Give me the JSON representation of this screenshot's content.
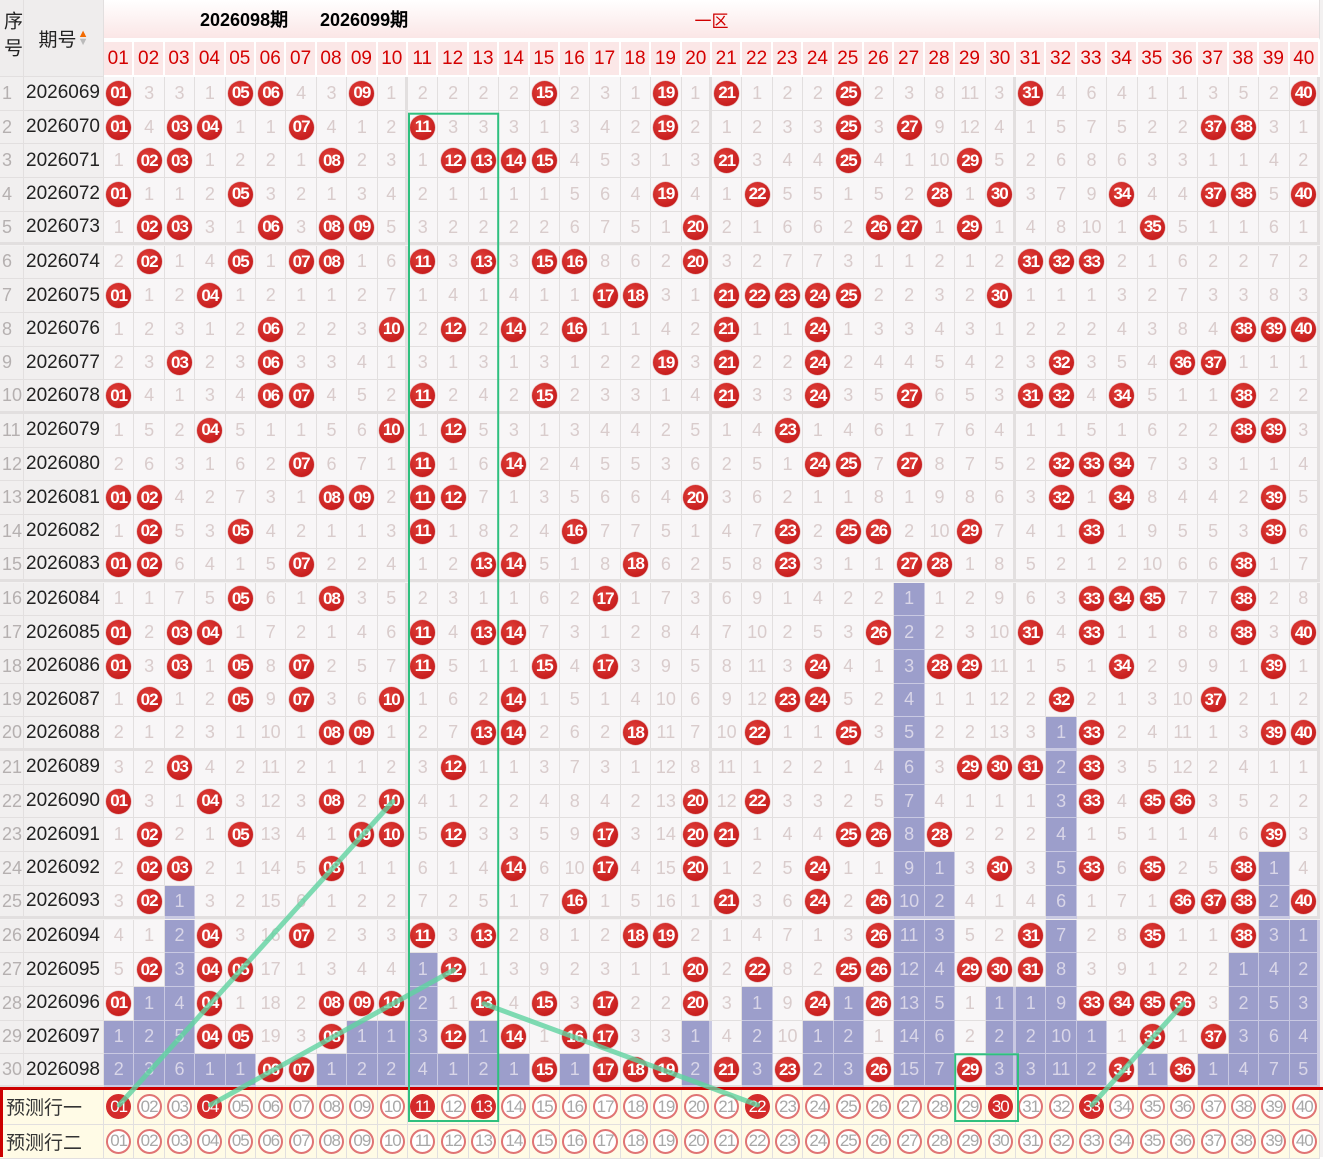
{
  "header": {
    "seq": "序号",
    "issue": "期号",
    "zone": "一区",
    "sort_icon": "sort-arrows-icon",
    "numbers": [
      "01",
      "02",
      "03",
      "04",
      "05",
      "06",
      "07",
      "08",
      "09",
      "10",
      "11",
      "12",
      "13",
      "14",
      "15",
      "16",
      "17",
      "18",
      "19",
      "20",
      "21",
      "22",
      "23",
      "24",
      "25",
      "26",
      "27",
      "28",
      "29",
      "30",
      "31",
      "32",
      "33",
      "34",
      "35",
      "36",
      "37",
      "38",
      "39",
      "40"
    ]
  },
  "rows": [
    {
      "seq": "1",
      "issue": "2026069",
      "cells": [
        "01",
        3,
        3,
        1,
        "05",
        "06",
        4,
        3,
        "09",
        1,
        2,
        2,
        2,
        2,
        "15",
        2,
        3,
        1,
        "19",
        1,
        "21",
        1,
        2,
        2,
        "25",
        2,
        3,
        8,
        11,
        3,
        "31",
        4,
        6,
        4,
        1,
        1,
        3,
        5,
        2,
        "40"
      ]
    },
    {
      "seq": "2",
      "issue": "2026070",
      "cells": [
        "01",
        4,
        "03",
        "04",
        1,
        1,
        "07",
        4,
        1,
        2,
        "11",
        3,
        3,
        3,
        1,
        3,
        4,
        2,
        "19",
        2,
        1,
        2,
        3,
        3,
        "25",
        3,
        "27",
        9,
        12,
        4,
        1,
        5,
        7,
        5,
        2,
        2,
        "37",
        "38",
        3,
        1
      ]
    },
    {
      "seq": "3",
      "issue": "2026071",
      "cells": [
        1,
        "02",
        "03",
        1,
        2,
        2,
        1,
        "08",
        2,
        3,
        1,
        "12",
        "13",
        "14",
        "15",
        4,
        5,
        3,
        1,
        3,
        "21",
        3,
        4,
        4,
        "25",
        4,
        1,
        10,
        "29",
        5,
        2,
        6,
        8,
        6,
        3,
        3,
        1,
        1,
        4,
        2
      ]
    },
    {
      "seq": "4",
      "issue": "2026072",
      "cells": [
        "01",
        1,
        1,
        2,
        "05",
        3,
        2,
        1,
        3,
        4,
        2,
        1,
        1,
        1,
        1,
        5,
        6,
        4,
        "19",
        4,
        1,
        "22",
        5,
        5,
        1,
        5,
        2,
        "28",
        1,
        "30",
        3,
        7,
        9,
        "34",
        4,
        4,
        "37",
        "38",
        5,
        "40"
      ]
    },
    {
      "seq": "5",
      "issue": "2026073",
      "cells": [
        1,
        "02",
        "03",
        3,
        1,
        "06",
        3,
        "08",
        "09",
        5,
        3,
        2,
        2,
        2,
        2,
        6,
        7,
        5,
        1,
        "20",
        2,
        1,
        6,
        6,
        2,
        "26",
        "27",
        1,
        "29",
        1,
        4,
        8,
        10,
        1,
        "35",
        5,
        1,
        1,
        6,
        1
      ]
    },
    {
      "seq": "6",
      "issue": "2026074",
      "cells": [
        2,
        "02",
        1,
        4,
        "05",
        1,
        "07",
        "08",
        1,
        6,
        "11",
        3,
        "13",
        3,
        "15",
        "16",
        8,
        6,
        2,
        "20",
        3,
        2,
        7,
        7,
        3,
        1,
        1,
        2,
        1,
        2,
        "31",
        "32",
        "33",
        2,
        1,
        6,
        2,
        2,
        7,
        2
      ]
    },
    {
      "seq": "7",
      "issue": "2026075",
      "cells": [
        "01",
        1,
        2,
        "04",
        1,
        2,
        1,
        1,
        2,
        7,
        1,
        4,
        1,
        4,
        1,
        1,
        "17",
        "18",
        3,
        1,
        "21",
        "22",
        "23",
        "24",
        "25",
        2,
        2,
        3,
        2,
        "30",
        1,
        1,
        1,
        3,
        2,
        7,
        3,
        3,
        8,
        3
      ]
    },
    {
      "seq": "8",
      "issue": "2026076",
      "cells": [
        1,
        2,
        3,
        1,
        2,
        "06",
        2,
        2,
        3,
        "10",
        2,
        "12",
        2,
        "14",
        2,
        "16",
        1,
        1,
        4,
        2,
        "21",
        1,
        1,
        "24",
        1,
        3,
        3,
        4,
        3,
        1,
        2,
        2,
        2,
        4,
        3,
        8,
        4,
        "38",
        "39",
        "40"
      ]
    },
    {
      "seq": "9",
      "issue": "2026077",
      "cells": [
        2,
        3,
        "03",
        2,
        3,
        "06",
        3,
        3,
        4,
        1,
        3,
        1,
        3,
        1,
        3,
        1,
        2,
        2,
        "19",
        3,
        "21",
        2,
        2,
        "24",
        2,
        4,
        4,
        5,
        4,
        2,
        3,
        "32",
        3,
        5,
        4,
        "36",
        "37",
        1,
        1,
        1
      ]
    },
    {
      "seq": "10",
      "issue": "2026078",
      "cells": [
        "01",
        4,
        1,
        3,
        4,
        "06",
        "07",
        4,
        5,
        2,
        "11",
        2,
        4,
        2,
        "15",
        2,
        3,
        3,
        1,
        4,
        "21",
        3,
        3,
        "24",
        3,
        5,
        "27",
        6,
        5,
        3,
        "31",
        "32",
        4,
        "34",
        5,
        1,
        1,
        "38",
        2,
        2
      ]
    },
    {
      "seq": "11",
      "issue": "2026079",
      "cells": [
        1,
        5,
        2,
        "04",
        5,
        1,
        1,
        5,
        6,
        "10",
        1,
        "12",
        5,
        3,
        1,
        3,
        4,
        4,
        2,
        5,
        1,
        4,
        "23",
        1,
        4,
        6,
        1,
        7,
        6,
        4,
        1,
        1,
        5,
        1,
        6,
        2,
        2,
        "38",
        "39",
        3
      ]
    },
    {
      "seq": "12",
      "issue": "2026080",
      "cells": [
        2,
        6,
        3,
        1,
        6,
        2,
        "07",
        6,
        7,
        1,
        "11",
        1,
        6,
        "14",
        2,
        4,
        5,
        5,
        3,
        6,
        2,
        5,
        1,
        "24",
        "25",
        7,
        "27",
        8,
        7,
        5,
        2,
        "32",
        "33",
        "34",
        7,
        3,
        3,
        1,
        1,
        4
      ]
    },
    {
      "seq": "13",
      "issue": "2026081",
      "cells": [
        "01",
        "02",
        4,
        2,
        7,
        3,
        1,
        "08",
        "09",
        2,
        "11",
        "12",
        7,
        1,
        3,
        5,
        6,
        6,
        4,
        "20",
        3,
        6,
        2,
        1,
        1,
        8,
        1,
        9,
        8,
        6,
        3,
        "32",
        1,
        "34",
        8,
        4,
        4,
        2,
        "39",
        5
      ]
    },
    {
      "seq": "14",
      "issue": "2026082",
      "cells": [
        1,
        "02",
        5,
        3,
        "05",
        4,
        2,
        1,
        1,
        3,
        "11",
        1,
        8,
        2,
        4,
        "16",
        7,
        7,
        5,
        1,
        4,
        7,
        "23",
        2,
        "25",
        "26",
        2,
        10,
        "29",
        7,
        4,
        1,
        "33",
        1,
        9,
        5,
        5,
        3,
        "39",
        6
      ]
    },
    {
      "seq": "15",
      "issue": "2026083",
      "cells": [
        "01",
        "02",
        6,
        4,
        1,
        5,
        "07",
        2,
        2,
        4,
        1,
        2,
        "13",
        "14",
        5,
        1,
        8,
        "18",
        6,
        2,
        5,
        8,
        "23",
        3,
        1,
        1,
        "27",
        "28",
        1,
        8,
        5,
        2,
        1,
        2,
        10,
        6,
        6,
        "38",
        1,
        7
      ]
    },
    {
      "seq": "16",
      "issue": "2026084",
      "cells": [
        1,
        1,
        7,
        5,
        "05",
        6,
        1,
        "08",
        3,
        5,
        2,
        3,
        1,
        1,
        6,
        2,
        "17",
        1,
        7,
        3,
        6,
        9,
        1,
        4,
        2,
        2,
        1,
        1,
        2,
        9,
        6,
        3,
        "33",
        "34",
        "35",
        7,
        7,
        "38",
        2,
        8
      ]
    },
    {
      "seq": "17",
      "issue": "2026085",
      "cells": [
        "01",
        2,
        "03",
        "04",
        1,
        7,
        2,
        1,
        4,
        6,
        "11",
        4,
        "13",
        "14",
        7,
        3,
        1,
        2,
        8,
        4,
        7,
        10,
        2,
        5,
        3,
        "26",
        2,
        2,
        3,
        10,
        "31",
        4,
        "33",
        1,
        1,
        8,
        8,
        "38",
        3,
        "40"
      ]
    },
    {
      "seq": "18",
      "issue": "2026086",
      "cells": [
        "01",
        3,
        "03",
        1,
        "05",
        8,
        "07",
        2,
        5,
        7,
        "11",
        5,
        1,
        1,
        "15",
        4,
        "17",
        3,
        9,
        5,
        8,
        11,
        3,
        "24",
        4,
        1,
        3,
        "28",
        "29",
        11,
        1,
        5,
        1,
        "34",
        2,
        9,
        9,
        1,
        "39",
        1
      ]
    },
    {
      "seq": "19",
      "issue": "2026087",
      "cells": [
        1,
        "02",
        1,
        2,
        "05",
        9,
        "07",
        3,
        6,
        "10",
        1,
        6,
        2,
        "14",
        1,
        5,
        1,
        4,
        10,
        6,
        9,
        12,
        "23",
        "24",
        5,
        2,
        4,
        1,
        1,
        12,
        2,
        "32",
        2,
        1,
        3,
        10,
        "37",
        2,
        1,
        2
      ]
    },
    {
      "seq": "20",
      "issue": "2026088",
      "cells": [
        2,
        1,
        2,
        3,
        1,
        10,
        1,
        "08",
        "09",
        1,
        2,
        7,
        "13",
        "14",
        2,
        6,
        2,
        "18",
        11,
        7,
        10,
        "22",
        1,
        1,
        "25",
        3,
        5,
        2,
        2,
        13,
        3,
        1,
        "33",
        2,
        4,
        11,
        1,
        3,
        "39",
        "40"
      ]
    },
    {
      "seq": "21",
      "issue": "2026089",
      "cells": [
        3,
        2,
        "03",
        4,
        2,
        11,
        2,
        1,
        1,
        2,
        3,
        "12",
        1,
        1,
        3,
        7,
        3,
        1,
        12,
        8,
        11,
        1,
        2,
        2,
        1,
        4,
        6,
        3,
        "29",
        "30",
        "31",
        2,
        "33",
        3,
        5,
        12,
        2,
        4,
        1,
        1
      ]
    },
    {
      "seq": "22",
      "issue": "2026090",
      "cells": [
        "01",
        3,
        1,
        "04",
        3,
        12,
        3,
        "08",
        2,
        "10",
        4,
        1,
        2,
        2,
        4,
        8,
        4,
        2,
        13,
        "20",
        12,
        "22",
        3,
        3,
        2,
        5,
        7,
        4,
        1,
        1,
        1,
        3,
        "33",
        4,
        "35",
        "36",
        3,
        5,
        2,
        2
      ]
    },
    {
      "seq": "23",
      "issue": "2026091",
      "cells": [
        1,
        "02",
        2,
        1,
        "05",
        13,
        4,
        1,
        "09",
        "10",
        5,
        "12",
        3,
        3,
        5,
        9,
        "17",
        3,
        14,
        "20",
        "21",
        1,
        4,
        4,
        "25",
        "26",
        8,
        "28",
        2,
        2,
        2,
        4,
        1,
        5,
        1,
        1,
        4,
        6,
        "39",
        3
      ]
    },
    {
      "seq": "24",
      "issue": "2026092",
      "cells": [
        2,
        "02",
        "03",
        2,
        1,
        14,
        5,
        "08",
        1,
        1,
        6,
        1,
        4,
        "14",
        6,
        10,
        "17",
        4,
        15,
        "20",
        1,
        2,
        5,
        "24",
        1,
        1,
        9,
        1,
        3,
        "30",
        3,
        5,
        "33",
        6,
        "35",
        2,
        5,
        "38",
        1,
        4
      ]
    },
    {
      "seq": "25",
      "issue": "2026093",
      "cells": [
        3,
        "02",
        1,
        3,
        2,
        15,
        6,
        1,
        2,
        2,
        7,
        2,
        5,
        1,
        7,
        "16",
        1,
        5,
        16,
        1,
        "21",
        3,
        6,
        "24",
        2,
        "26",
        10,
        2,
        4,
        1,
        4,
        6,
        1,
        7,
        1,
        "36",
        "37",
        "38",
        2,
        "40"
      ]
    },
    {
      "seq": "26",
      "issue": "2026094",
      "cells": [
        4,
        1,
        2,
        "04",
        3,
        16,
        "07",
        2,
        3,
        3,
        "11",
        3,
        "13",
        2,
        8,
        1,
        2,
        "18",
        "19",
        2,
        1,
        4,
        7,
        1,
        3,
        "26",
        11,
        3,
        5,
        2,
        "31",
        7,
        2,
        8,
        "35",
        1,
        1,
        "38",
        3,
        1
      ]
    },
    {
      "seq": "27",
      "issue": "2026095",
      "cells": [
        5,
        "02",
        3,
        "04",
        "05",
        17,
        1,
        3,
        4,
        4,
        1,
        "12",
        1,
        3,
        9,
        2,
        3,
        1,
        1,
        "20",
        2,
        "22",
        8,
        2,
        "25",
        "26",
        12,
        4,
        "29",
        "30",
        "31",
        8,
        3,
        9,
        1,
        2,
        2,
        1,
        4,
        2
      ]
    },
    {
      "seq": "28",
      "issue": "2026096",
      "cells": [
        "01",
        1,
        4,
        "04",
        1,
        18,
        2,
        "08",
        "09",
        "10",
        2,
        1,
        "13",
        4,
        "15",
        3,
        "17",
        2,
        2,
        "20",
        3,
        1,
        9,
        "24",
        1,
        "26",
        13,
        5,
        1,
        1,
        1,
        9,
        "33",
        "34",
        "35",
        "36",
        3,
        2,
        5,
        3
      ]
    },
    {
      "seq": "29",
      "issue": "2026097",
      "cells": [
        1,
        2,
        5,
        "04",
        "05",
        19,
        3,
        "08",
        1,
        1,
        3,
        "12",
        1,
        "14",
        1,
        "16",
        "17",
        3,
        3,
        1,
        4,
        2,
        10,
        1,
        2,
        1,
        14,
        6,
        2,
        2,
        2,
        10,
        1,
        1,
        "35",
        1,
        "37",
        3,
        6,
        4
      ]
    },
    {
      "seq": "30",
      "issue": "2026098",
      "cells": [
        2,
        3,
        6,
        1,
        1,
        "06",
        "07",
        1,
        2,
        2,
        4,
        1,
        2,
        1,
        "15",
        1,
        "17",
        "18",
        "19",
        2,
        "21",
        3,
        "23",
        2,
        3,
        "26",
        15,
        7,
        "29",
        3,
        3,
        11,
        2,
        "34",
        1,
        "36",
        1,
        4,
        7,
        5
      ]
    }
  ],
  "prediction": {
    "rows": [
      {
        "label": "预测行一",
        "selected": [
          "01",
          "04",
          "11",
          "13",
          "22",
          "30",
          "33"
        ]
      },
      {
        "label": "预测行二",
        "selected": []
      }
    ]
  },
  "overlay": {
    "labels": [
      "2026098期",
      "2026099期"
    ]
  },
  "colors": {
    "ball": "#d32f2f",
    "miss_tail": "#9c9ecb",
    "guide_line": "#5fd3a0",
    "header_text": "#d40000"
  }
}
